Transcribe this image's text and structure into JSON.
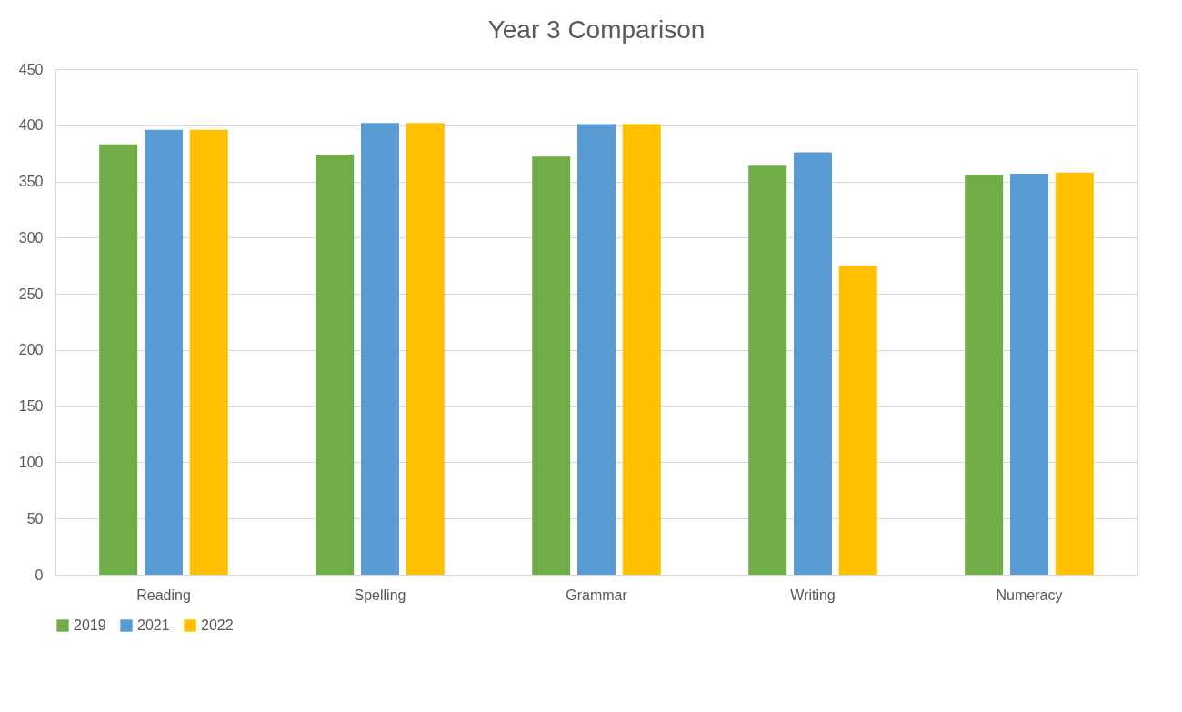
{
  "chart_data": {
    "type": "bar",
    "title": "Year 3 Comparison",
    "categories": [
      "Reading",
      "Spelling",
      "Grammar",
      "Writing",
      "Numeracy"
    ],
    "series": [
      {
        "name": "2019",
        "color": "#70ad47",
        "values": [
          383,
          374,
          372,
          364,
          356
        ]
      },
      {
        "name": "2021",
        "color": "#5b9bd5",
        "values": [
          396,
          402,
          401,
          376,
          357
        ]
      },
      {
        "name": "2022",
        "color": "#ffc000",
        "values": [
          396,
          402,
          401,
          275,
          358
        ]
      }
    ],
    "ylim": [
      0,
      450
    ],
    "yticks": [
      0,
      50,
      100,
      150,
      200,
      250,
      300,
      350,
      400,
      450
    ],
    "grid": "y",
    "legend": "bottom"
  }
}
